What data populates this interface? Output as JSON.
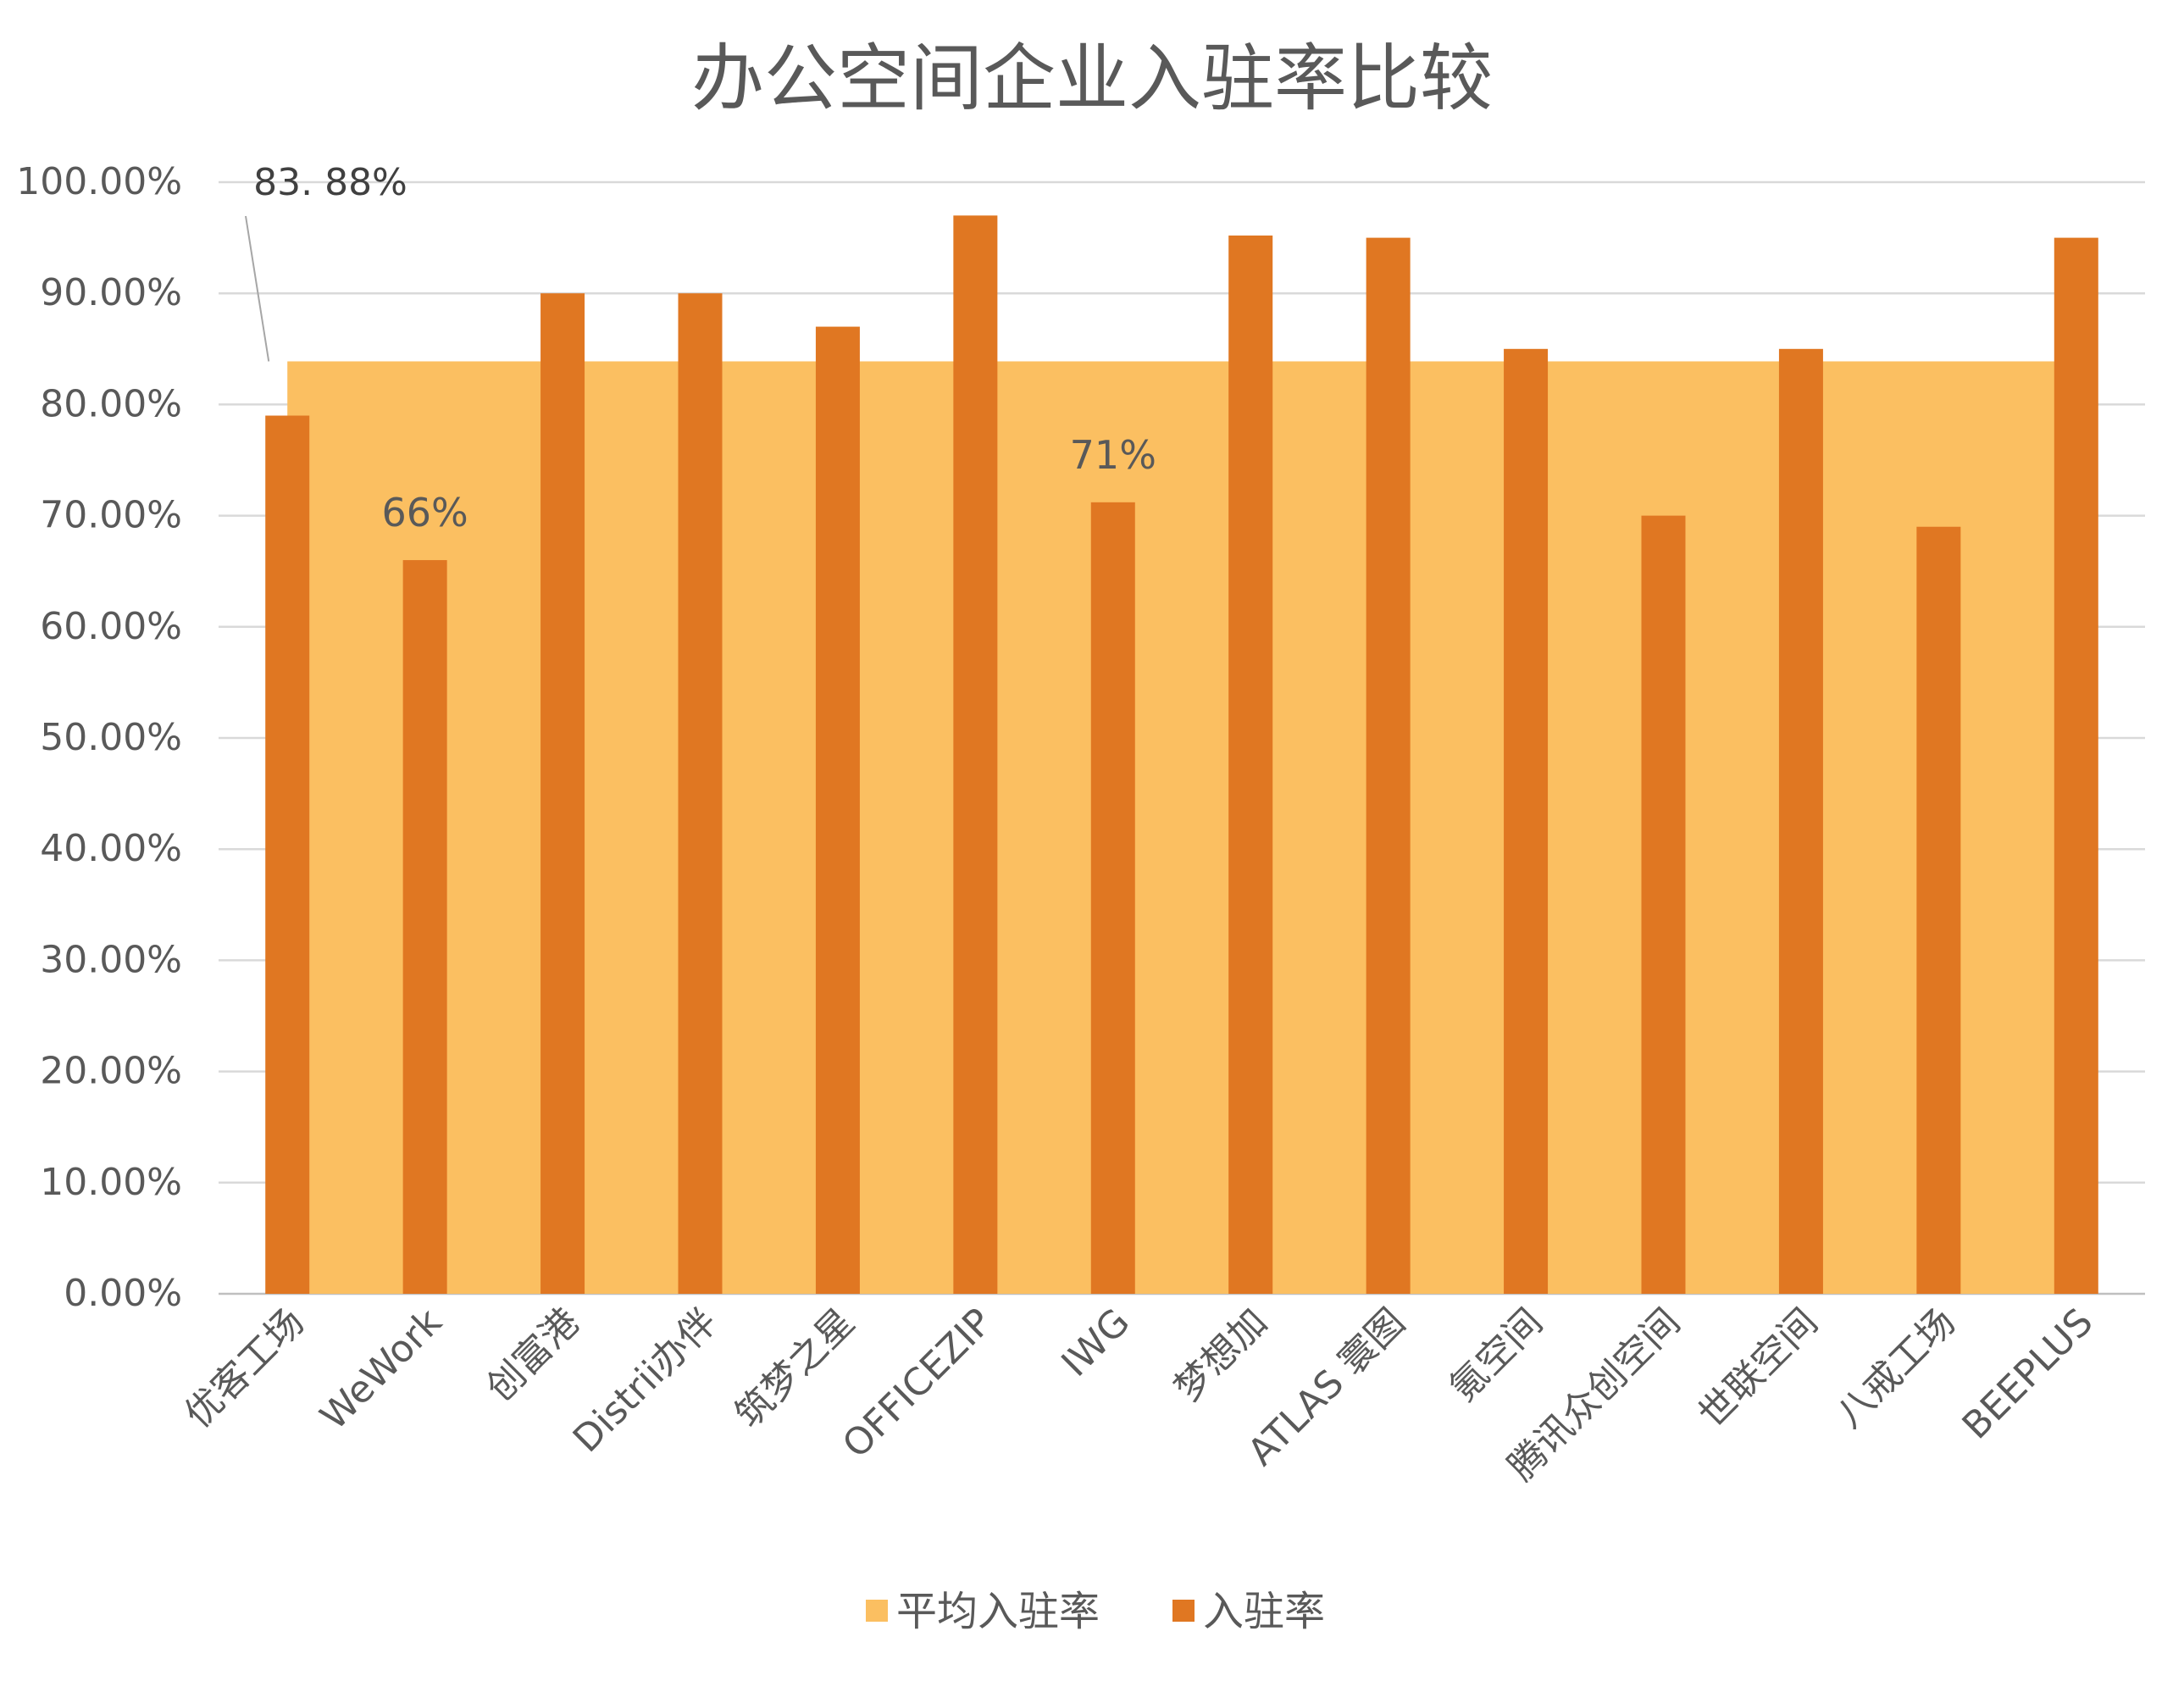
{
  "chart_data": {
    "type": "bar",
    "title": "办公空间企业入驻率比较",
    "categories": [
      "优客工场",
      "WeWork",
      "创富港",
      "Distrii办伴",
      "筑梦之星",
      "OFFICEZIP",
      "IWG",
      "梦想加",
      "ATLAS 寰图",
      "氪空间",
      "腾讯众创空间",
      "世联空间",
      "八戒工场",
      "BEEPLUS"
    ],
    "series": [
      {
        "name": "平均入驻率",
        "type": "area",
        "color": "#FBBF61",
        "values": [
          83.88,
          83.88,
          83.88,
          83.88,
          83.88,
          83.88,
          83.88,
          83.88,
          83.88,
          83.88,
          83.88,
          83.88,
          83.88,
          83.88
        ]
      },
      {
        "name": "入驻率",
        "type": "bar",
        "color": "#E07722",
        "values": [
          79,
          66,
          90,
          90,
          87,
          97,
          71.2,
          95.2,
          95,
          85,
          70,
          85,
          69,
          95
        ]
      }
    ],
    "yticks": [
      "0.00%",
      "10.00%",
      "20.00%",
      "30.00%",
      "40.00%",
      "50.00%",
      "60.00%",
      "70.00%",
      "80.00%",
      "90.00%",
      "100.00%"
    ],
    "ylim": [
      0,
      100
    ],
    "grid": true,
    "legend_position": "bottom",
    "annotations": [
      {
        "text": "83. 88%",
        "target_series": "平均入驻率",
        "target_index": 0
      },
      {
        "text": "66%",
        "target_series": "入驻率",
        "target_index": 1
      },
      {
        "text": "71%",
        "target_series": "入驻率",
        "target_index": 6
      }
    ]
  }
}
